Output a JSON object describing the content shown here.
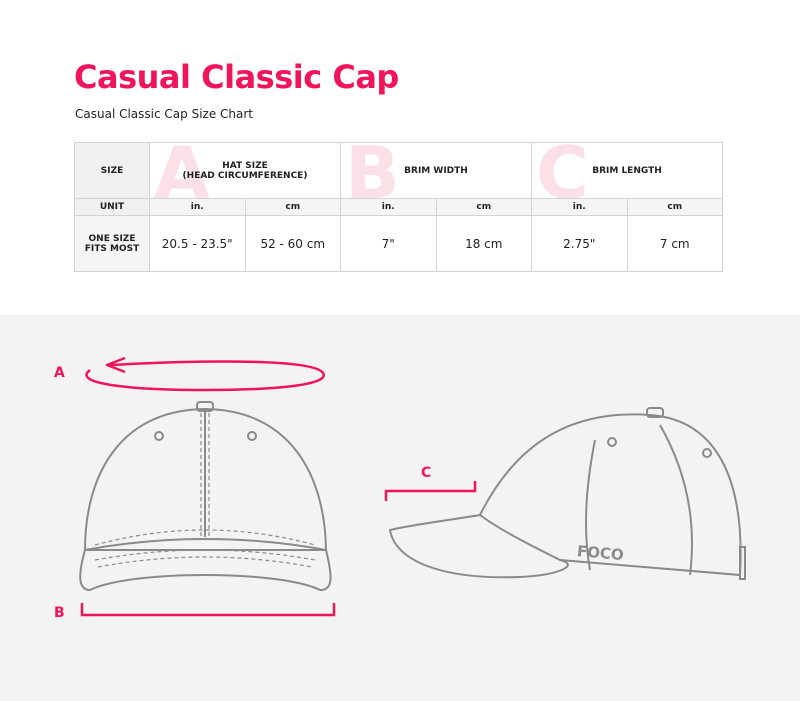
{
  "title": "Casual Classic Cap",
  "subtitle": "Casual Classic Cap Size Chart",
  "table": {
    "size_label": "SIZE",
    "groups": [
      {
        "letter": "A",
        "label": "HAT SIZE\n(HEAD CIRCUMFERENCE)",
        "in": "20.5 - 23.5\"",
        "cm": "52 - 60 cm"
      },
      {
        "letter": "B",
        "label": "BRIM WIDTH",
        "in": "7\"",
        "cm": "18 cm"
      },
      {
        "letter": "C",
        "label": "BRIM LENGTH",
        "in": "2.75\"",
        "cm": "7 cm"
      }
    ],
    "unit_label": "UNIT",
    "unit_in": "in.",
    "unit_cm": "cm",
    "row_label": "ONE SIZE\nFITS MOST"
  },
  "diagram": {
    "marker_a": "A",
    "marker_b": "B",
    "marker_c": "C",
    "logo": "FOCO",
    "accent": "#f0145a",
    "line": "#8a8a8a"
  }
}
